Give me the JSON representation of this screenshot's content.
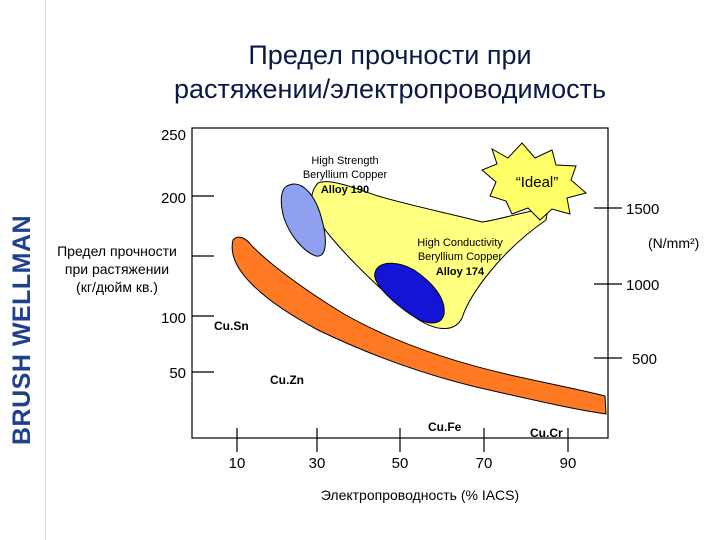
{
  "brand": "BRUSH WELLMAN",
  "title": {
    "line1": "Предел прочности при",
    "line2": "растяжении/электропроводимость"
  },
  "y_axis_left": {
    "label_lines": [
      "Предел прочности",
      "при растяжении",
      "(кг/дюйм кв.)"
    ],
    "ticks": [
      "250",
      "200",
      "100",
      "50"
    ]
  },
  "y_axis_right": {
    "unit": "(N/mm²)",
    "ticks": [
      "1500",
      "1000",
      "500"
    ]
  },
  "x_axis": {
    "label": "Электропроводность (% IACS)",
    "ticks": [
      "10",
      "30",
      "50",
      "70",
      "90"
    ]
  },
  "regions": {
    "high_strength": {
      "line1": "High Strength",
      "line2": "Beryllium Copper",
      "line3": "Alloy 190",
      "color": "#8ea0ef"
    },
    "high_conductivity": {
      "line1": "High Conductivity",
      "line2": "Beryllium Copper",
      "line3": "Alloy 174",
      "color": "#1414d6"
    },
    "yellow_band_color": "#ffff80",
    "orange_band_color": "#ff7a22",
    "ideal": {
      "label": "“Ideal”",
      "color": "#ffff66"
    }
  },
  "material_labels": {
    "cusn": "Cu.Sn",
    "cuzn": "Cu.Zn",
    "cufe": "Cu.Fe",
    "cucr": "Cu.Cr"
  }
}
